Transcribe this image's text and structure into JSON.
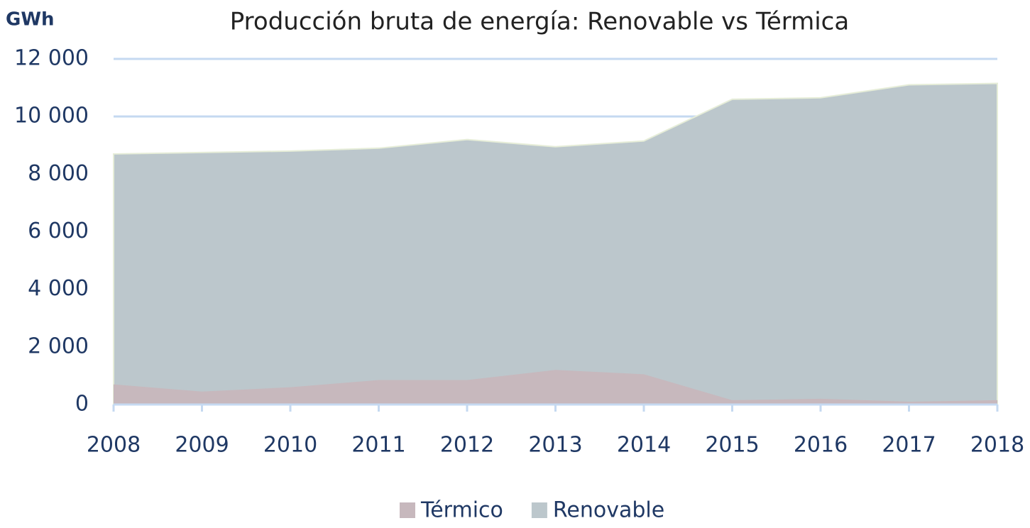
{
  "chart_data": {
    "type": "area",
    "title": "Producción bruta de energía: Renovable vs Térmica",
    "ylabel": "GWh",
    "x": [
      "2008",
      "2009",
      "2010",
      "2011",
      "2012",
      "2013",
      "2014",
      "2015",
      "2016",
      "2017",
      "2018"
    ],
    "series": [
      {
        "name": "Renovable",
        "color": "#bcc7cc",
        "values": [
          8700,
          8750,
          8800,
          8900,
          9200,
          8950,
          9150,
          10600,
          10650,
          11100,
          11150
        ]
      },
      {
        "name": "Térmico",
        "color": "#c7b8bd",
        "values": [
          700,
          450,
          600,
          850,
          850,
          1200,
          1050,
          150,
          200,
          100,
          150
        ]
      }
    ],
    "legend_order": [
      1,
      0
    ],
    "ylim": [
      0,
      12000
    ],
    "yticks": [
      0,
      {
        "value": 2000,
        "label": "2 000"
      },
      {
        "value": 4000,
        "label": "4 000"
      },
      {
        "value": 6000,
        "label": "6 000"
      },
      {
        "value": 8000,
        "label": "8 000"
      },
      {
        "value": 10000,
        "label": "10 000"
      },
      {
        "value": 12000,
        "label": "12 000"
      }
    ],
    "grid": true
  }
}
